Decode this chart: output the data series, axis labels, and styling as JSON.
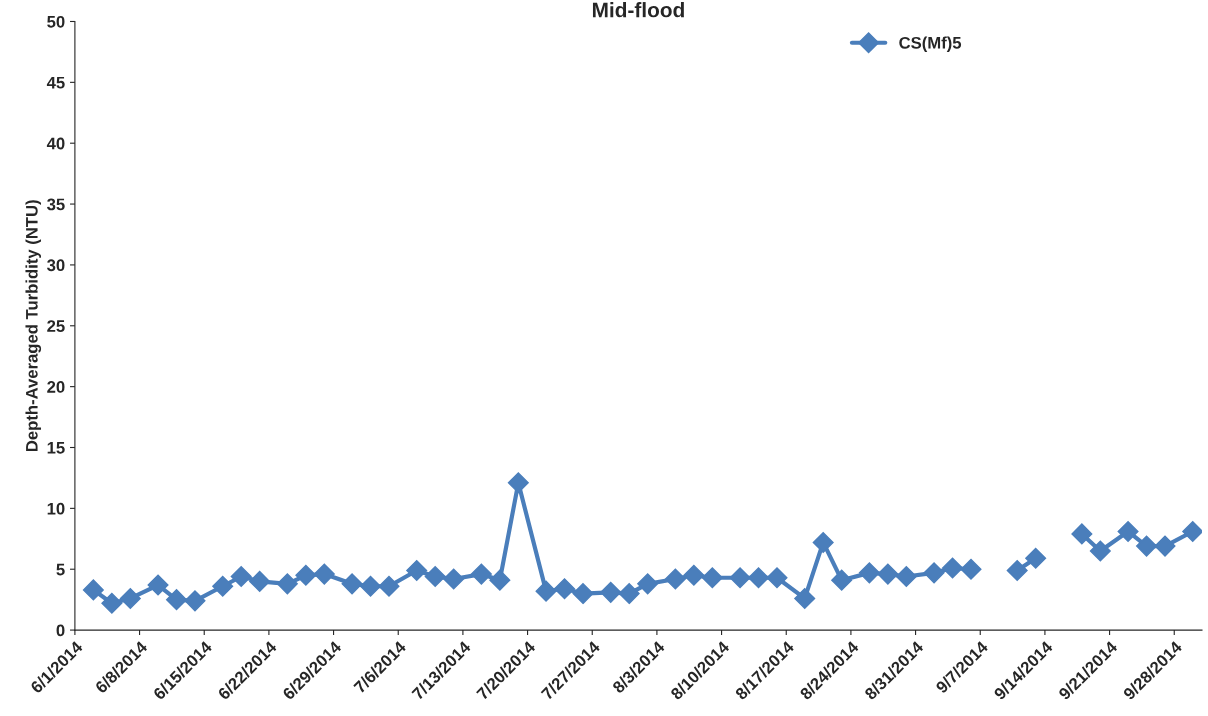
{
  "chart_data": {
    "type": "line",
    "title": "Mid-flood",
    "ylabel": "Depth-Averaged Turbidity (NTU)",
    "x": [
      "2014-06-03",
      "2014-06-05",
      "2014-06-07",
      "2014-06-10",
      "2014-06-12",
      "2014-06-14",
      "2014-06-17",
      "2014-06-19",
      "2014-06-21",
      "2014-06-24",
      "2014-06-26",
      "2014-06-28",
      "2014-07-01",
      "2014-07-03",
      "2014-07-05",
      "2014-07-08",
      "2014-07-10",
      "2014-07-12",
      "2014-07-15",
      "2014-07-17",
      "2014-07-19",
      "2014-07-22",
      "2014-07-24",
      "2014-07-26",
      "2014-07-29",
      "2014-07-31",
      "2014-08-02",
      "2014-08-05",
      "2014-08-07",
      "2014-08-09",
      "2014-08-12",
      "2014-08-14",
      "2014-08-16",
      "2014-08-19",
      "2014-08-21",
      "2014-08-23",
      "2014-08-26",
      "2014-08-28",
      "2014-08-30",
      "2014-09-02",
      "2014-09-04",
      "2014-09-06",
      "2014-09-09",
      "2014-09-11",
      "2014-09-13",
      "2014-09-16",
      "2014-09-18",
      "2014-09-20",
      "2014-09-23",
      "2014-09-25",
      "2014-09-27",
      "2014-09-30"
    ],
    "series": [
      {
        "name": "CS(Mf)5",
        "color": "#4a7ebb",
        "values": [
          3.3,
          2.2,
          2.6,
          3.7,
          2.5,
          2.4,
          3.6,
          4.4,
          4.0,
          3.8,
          4.5,
          4.6,
          3.8,
          3.6,
          3.6,
          4.9,
          4.4,
          4.2,
          4.6,
          4.1,
          12.1,
          3.2,
          3.4,
          3.0,
          3.1,
          3.0,
          3.8,
          4.2,
          4.5,
          4.3,
          4.3,
          4.3,
          4.3,
          2.6,
          7.2,
          4.1,
          4.7,
          4.6,
          4.4,
          4.7,
          5.1,
          5.0,
          null,
          4.9,
          5.9,
          null,
          7.9,
          6.5,
          8.1,
          6.9,
          6.9,
          8.1
        ]
      }
    ],
    "xlim": [
      "2014-06-01",
      "2014-10-01"
    ],
    "xticks": [
      {
        "value": "2014-06-01",
        "label": "6/1/2014"
      },
      {
        "value": "2014-06-08",
        "label": "6/8/2014"
      },
      {
        "value": "2014-06-15",
        "label": "6/15/2014"
      },
      {
        "value": "2014-06-22",
        "label": "6/22/2014"
      },
      {
        "value": "2014-06-29",
        "label": "6/29/2014"
      },
      {
        "value": "2014-07-06",
        "label": "7/6/2014"
      },
      {
        "value": "2014-07-13",
        "label": "7/13/2014"
      },
      {
        "value": "2014-07-20",
        "label": "7/20/2014"
      },
      {
        "value": "2014-07-27",
        "label": "7/27/2014"
      },
      {
        "value": "2014-08-03",
        "label": "8/3/2014"
      },
      {
        "value": "2014-08-10",
        "label": "8/10/2014"
      },
      {
        "value": "2014-08-17",
        "label": "8/17/2014"
      },
      {
        "value": "2014-08-24",
        "label": "8/24/2014"
      },
      {
        "value": "2014-08-31",
        "label": "8/31/2014"
      },
      {
        "value": "2014-09-07",
        "label": "9/7/2014"
      },
      {
        "value": "2014-09-14",
        "label": "9/14/2014"
      },
      {
        "value": "2014-09-21",
        "label": "9/21/2014"
      },
      {
        "value": "2014-09-28",
        "label": "9/28/2014"
      }
    ],
    "ylim": [
      0,
      50
    ],
    "yticks": [
      0,
      5,
      10,
      15,
      20,
      25,
      30,
      35,
      40,
      45,
      50
    ],
    "grid": false,
    "legend": "top right",
    "marker": "diamond",
    "line_style": "solid"
  }
}
